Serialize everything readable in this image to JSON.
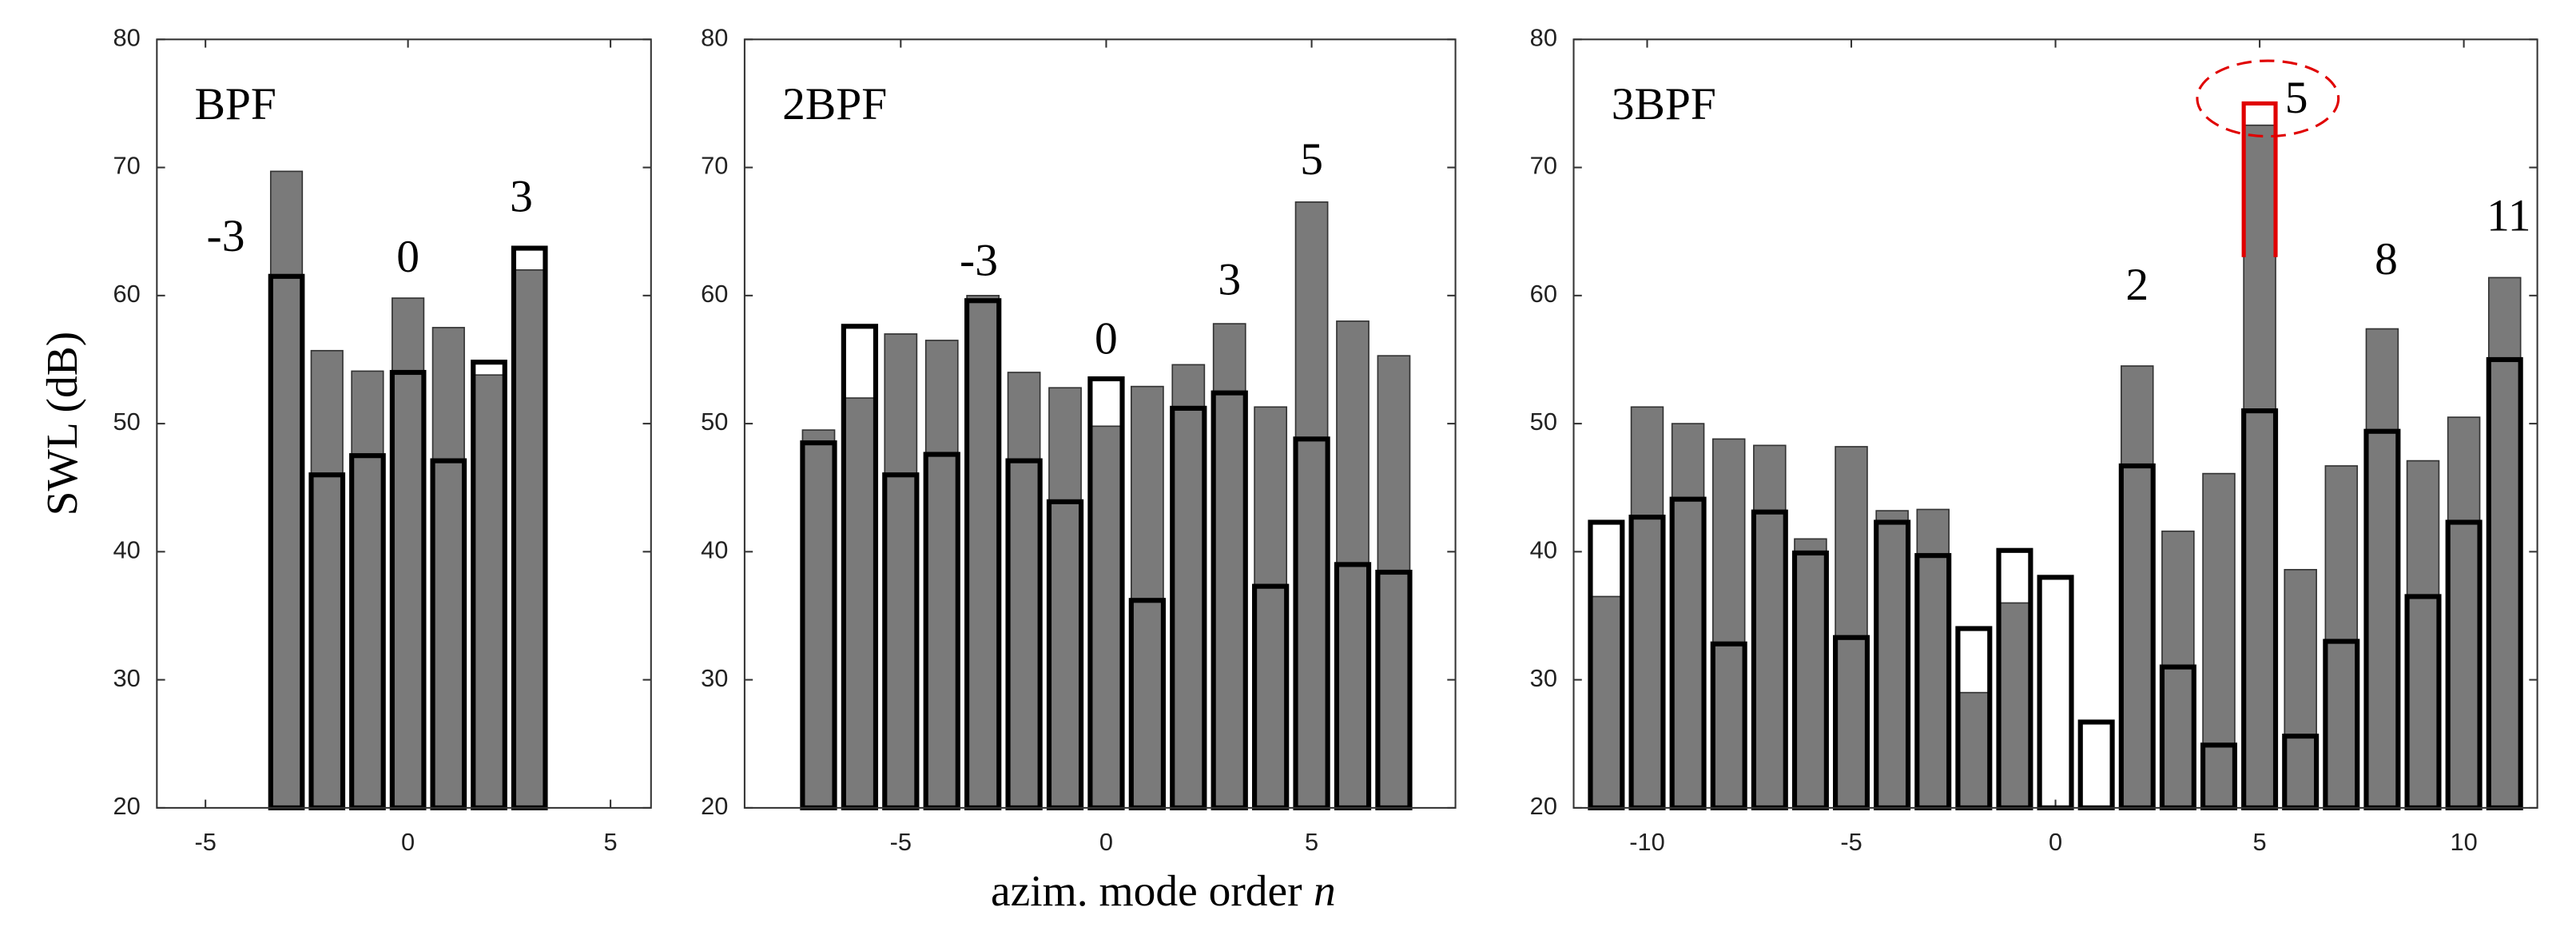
{
  "chart_data": [
    {
      "type": "bar",
      "title": "BPF",
      "ylabel": "SWL (dB)",
      "x": [
        -3,
        -2,
        -1,
        0,
        1,
        2,
        3
      ],
      "series": [
        {
          "color": "#7a7a7a",
          "values": [
            69.7,
            55.7,
            54.1,
            59.8,
            57.5,
            53.8,
            62
          ]
        },
        {
          "color": "#000000",
          "style": "outline",
          "values": [
            61.5,
            46,
            47.5,
            54,
            47.1,
            54.8,
            63.7
          ]
        }
      ],
      "xlim": [
        -6.2,
        6
      ],
      "xticks": [
        -5,
        0,
        5
      ],
      "ylim": [
        20,
        80
      ],
      "yticks": [
        20,
        30,
        40,
        50,
        60,
        70,
        80
      ],
      "annotations": [
        {
          "text": "-3",
          "x": -4.5,
          "y": 64.3
        },
        {
          "text": "0",
          "x": 0,
          "y": 62.7
        },
        {
          "text": "3",
          "x": 2.8,
          "y": 67.4
        }
      ]
    },
    {
      "type": "bar",
      "title": "2BPF",
      "xlabel": "azim. mode order",
      "xlabel_var": "n",
      "x": [
        -7,
        -6,
        -5,
        -4,
        -3,
        -2,
        -1,
        0,
        1,
        2,
        3,
        4,
        5,
        6,
        7
      ],
      "series": [
        {
          "color": "#7a7a7a",
          "values": [
            49.5,
            52,
            57,
            56.5,
            60,
            54,
            52.8,
            49.8,
            52.9,
            54.6,
            57.8,
            51.3,
            67.3,
            58,
            55.3
          ]
        },
        {
          "color": "#000000",
          "style": "outline",
          "values": [
            48.5,
            57.6,
            46,
            47.6,
            59.6,
            47.1,
            43.9,
            53.5,
            36.2,
            51.2,
            52.4,
            37.3,
            48.8,
            39,
            38.4
          ]
        }
      ],
      "xlim": [
        -8.8,
        8.5
      ],
      "xticks": [
        -5,
        0,
        5
      ],
      "ylim": [
        20,
        80
      ],
      "yticks": [
        20,
        30,
        40,
        50,
        60,
        70,
        80
      ],
      "annotations": [
        {
          "text": "-3",
          "x": -3.1,
          "y": 62.4
        },
        {
          "text": "0",
          "x": 0,
          "y": 56.3
        },
        {
          "text": "3",
          "x": 3,
          "y": 60.9
        },
        {
          "text": "5",
          "x": 5,
          "y": 70.3
        }
      ]
    },
    {
      "type": "bar",
      "title": "3BPF",
      "x": [
        -11,
        -10,
        -9,
        -8,
        -7,
        -6,
        -5,
        -4,
        -3,
        -2,
        -1,
        0,
        1,
        2,
        3,
        4,
        5,
        6,
        7,
        8,
        9,
        10,
        11
      ],
      "series": [
        {
          "color": "#7a7a7a",
          "values": [
            36.5,
            51.3,
            50,
            48.8,
            48.3,
            41,
            48.2,
            43.2,
            43.3,
            29,
            36,
            null,
            null,
            54.5,
            41.6,
            46.1,
            73.3,
            38.6,
            46.7,
            57.4,
            47.1,
            50.5,
            61.4
          ]
        },
        {
          "color": "#000000",
          "style": "outline",
          "values": [
            42.3,
            42.7,
            44.1,
            32.8,
            43.1,
            39.9,
            33.3,
            42.3,
            39.7,
            34,
            40.1,
            38,
            26.7,
            46.7,
            31,
            24.9,
            51,
            25.6,
            33,
            49.4,
            36.5,
            42.3,
            55
          ]
        }
      ],
      "xlim": [
        -11.8,
        11.8
      ],
      "xticks": [
        -10,
        -5,
        0,
        5,
        10
      ],
      "ylim": [
        20,
        80
      ],
      "yticks": [
        20,
        30,
        40,
        50,
        60,
        70,
        80
      ],
      "annotations": [
        {
          "text": "2",
          "x": 2,
          "y": 60.5
        },
        {
          "text": "5",
          "x": 5.9,
          "y": 75.1
        },
        {
          "text": "8",
          "x": 8.1,
          "y": 62.5
        },
        {
          "text": "11",
          "x": 11.1,
          "y": 65.9
        }
      ],
      "highlight": {
        "x": 5,
        "top": 75,
        "bottom": 63,
        "color": "#e00000"
      }
    }
  ]
}
